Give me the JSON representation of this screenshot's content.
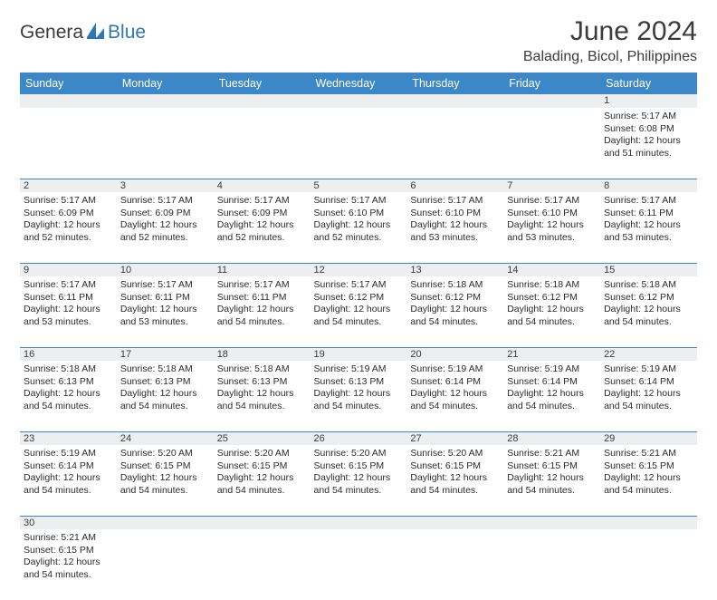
{
  "logo": {
    "part1": "Genera",
    "part2": "Blue"
  },
  "title": "June 2024",
  "location": "Balading, Bicol, Philippines",
  "colors": {
    "header_bg": "#3b87c8",
    "header_text": "#ffffff",
    "daynum_bg": "#eceeef",
    "row_border": "#3b87c8",
    "text": "#2b2b2b",
    "logo_blue": "#2e77b5",
    "logo_gray": "#3b3b3b"
  },
  "typography": {
    "title_fontsize": 30,
    "location_fontsize": 16,
    "weekday_fontsize": 12.5,
    "daynum_fontsize": 11,
    "info_fontsize": 10.5
  },
  "weekdays": [
    "Sunday",
    "Monday",
    "Tuesday",
    "Wednesday",
    "Thursday",
    "Friday",
    "Saturday"
  ],
  "weeks": [
    [
      null,
      null,
      null,
      null,
      null,
      null,
      {
        "n": "1",
        "r": "5:17 AM",
        "s": "6:08 PM",
        "d": "12 hours and 51 minutes."
      }
    ],
    [
      {
        "n": "2",
        "r": "5:17 AM",
        "s": "6:09 PM",
        "d": "12 hours and 52 minutes."
      },
      {
        "n": "3",
        "r": "5:17 AM",
        "s": "6:09 PM",
        "d": "12 hours and 52 minutes."
      },
      {
        "n": "4",
        "r": "5:17 AM",
        "s": "6:09 PM",
        "d": "12 hours and 52 minutes."
      },
      {
        "n": "5",
        "r": "5:17 AM",
        "s": "6:10 PM",
        "d": "12 hours and 52 minutes."
      },
      {
        "n": "6",
        "r": "5:17 AM",
        "s": "6:10 PM",
        "d": "12 hours and 53 minutes."
      },
      {
        "n": "7",
        "r": "5:17 AM",
        "s": "6:10 PM",
        "d": "12 hours and 53 minutes."
      },
      {
        "n": "8",
        "r": "5:17 AM",
        "s": "6:11 PM",
        "d": "12 hours and 53 minutes."
      }
    ],
    [
      {
        "n": "9",
        "r": "5:17 AM",
        "s": "6:11 PM",
        "d": "12 hours and 53 minutes."
      },
      {
        "n": "10",
        "r": "5:17 AM",
        "s": "6:11 PM",
        "d": "12 hours and 53 minutes."
      },
      {
        "n": "11",
        "r": "5:17 AM",
        "s": "6:11 PM",
        "d": "12 hours and 54 minutes."
      },
      {
        "n": "12",
        "r": "5:17 AM",
        "s": "6:12 PM",
        "d": "12 hours and 54 minutes."
      },
      {
        "n": "13",
        "r": "5:18 AM",
        "s": "6:12 PM",
        "d": "12 hours and 54 minutes."
      },
      {
        "n": "14",
        "r": "5:18 AM",
        "s": "6:12 PM",
        "d": "12 hours and 54 minutes."
      },
      {
        "n": "15",
        "r": "5:18 AM",
        "s": "6:12 PM",
        "d": "12 hours and 54 minutes."
      }
    ],
    [
      {
        "n": "16",
        "r": "5:18 AM",
        "s": "6:13 PM",
        "d": "12 hours and 54 minutes."
      },
      {
        "n": "17",
        "r": "5:18 AM",
        "s": "6:13 PM",
        "d": "12 hours and 54 minutes."
      },
      {
        "n": "18",
        "r": "5:18 AM",
        "s": "6:13 PM",
        "d": "12 hours and 54 minutes."
      },
      {
        "n": "19",
        "r": "5:19 AM",
        "s": "6:13 PM",
        "d": "12 hours and 54 minutes."
      },
      {
        "n": "20",
        "r": "5:19 AM",
        "s": "6:14 PM",
        "d": "12 hours and 54 minutes."
      },
      {
        "n": "21",
        "r": "5:19 AM",
        "s": "6:14 PM",
        "d": "12 hours and 54 minutes."
      },
      {
        "n": "22",
        "r": "5:19 AM",
        "s": "6:14 PM",
        "d": "12 hours and 54 minutes."
      }
    ],
    [
      {
        "n": "23",
        "r": "5:19 AM",
        "s": "6:14 PM",
        "d": "12 hours and 54 minutes."
      },
      {
        "n": "24",
        "r": "5:20 AM",
        "s": "6:15 PM",
        "d": "12 hours and 54 minutes."
      },
      {
        "n": "25",
        "r": "5:20 AM",
        "s": "6:15 PM",
        "d": "12 hours and 54 minutes."
      },
      {
        "n": "26",
        "r": "5:20 AM",
        "s": "6:15 PM",
        "d": "12 hours and 54 minutes."
      },
      {
        "n": "27",
        "r": "5:20 AM",
        "s": "6:15 PM",
        "d": "12 hours and 54 minutes."
      },
      {
        "n": "28",
        "r": "5:21 AM",
        "s": "6:15 PM",
        "d": "12 hours and 54 minutes."
      },
      {
        "n": "29",
        "r": "5:21 AM",
        "s": "6:15 PM",
        "d": "12 hours and 54 minutes."
      }
    ],
    [
      {
        "n": "30",
        "r": "5:21 AM",
        "s": "6:15 PM",
        "d": "12 hours and 54 minutes."
      },
      null,
      null,
      null,
      null,
      null,
      null
    ]
  ],
  "labels": {
    "sunrise": "Sunrise:",
    "sunset": "Sunset:",
    "daylight": "Daylight:"
  }
}
